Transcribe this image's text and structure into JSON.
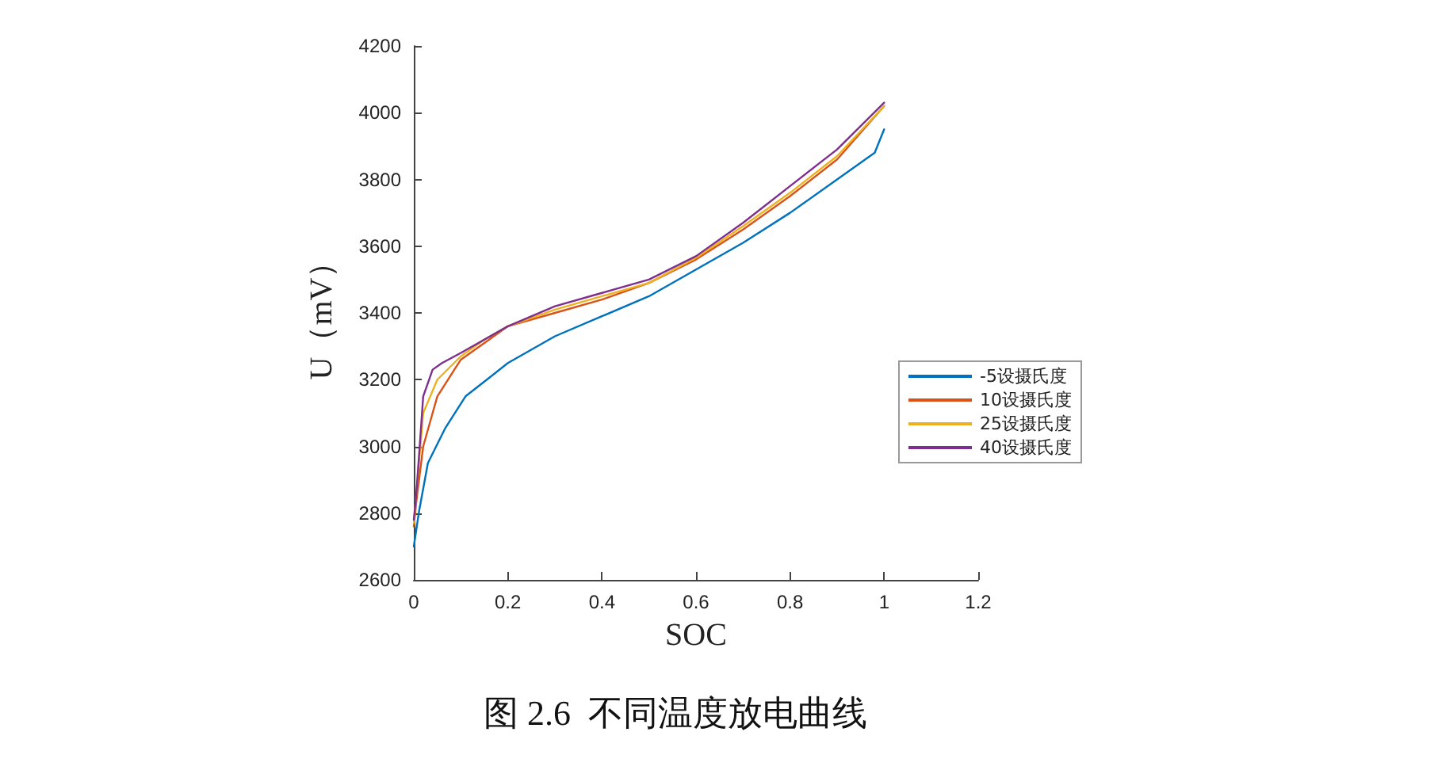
{
  "chart_data": {
    "type": "line",
    "title": "图 2.6  不同温度放电曲线",
    "xlabel": "SOC",
    "ylabel": "U（mV）",
    "xlim": [
      0,
      1.2
    ],
    "xticks": [
      0,
      0.2,
      0.4,
      0.6,
      0.8,
      1,
      1.2
    ],
    "ylim": [
      2600,
      4200
    ],
    "yticks": [
      2600,
      2800,
      3000,
      3200,
      3400,
      3600,
      3800,
      4000,
      4200
    ],
    "grid": false,
    "legend": "right",
    "marker": "none",
    "line_style": "solid",
    "series": [
      {
        "name": "-5设摄氏度",
        "color": "#0072bd",
        "x": [
          0,
          0.011,
          0.03,
          0.067,
          0.11,
          0.166,
          0.2,
          0.3,
          0.4,
          0.5,
          0.6,
          0.7,
          0.8,
          0.9,
          0.98,
          1
        ],
        "values": [
          2700,
          2804,
          2950,
          3055,
          3150,
          3212,
          3250,
          3330,
          3390,
          3450,
          3530,
          3610,
          3700,
          3800,
          3880,
          3950
        ]
      },
      {
        "name": "10设摄氏度",
        "color": "#d95319",
        "x": [
          0,
          0.005,
          0.02,
          0.05,
          0.1,
          0.15,
          0.2,
          0.3,
          0.4,
          0.5,
          0.6,
          0.7,
          0.8,
          0.9,
          1
        ],
        "values": [
          2760,
          2830,
          3000,
          3150,
          3260,
          3310,
          3360,
          3400,
          3440,
          3490,
          3560,
          3650,
          3750,
          3860,
          4020
        ]
      },
      {
        "name": "25设摄氏度",
        "color": "#edb120",
        "x": [
          0,
          0.005,
          0.02,
          0.05,
          0.1,
          0.15,
          0.2,
          0.3,
          0.4,
          0.5,
          0.6,
          0.7,
          0.8,
          0.9,
          1
        ],
        "values": [
          2770,
          2850,
          3100,
          3200,
          3270,
          3320,
          3360,
          3410,
          3450,
          3490,
          3565,
          3660,
          3760,
          3870,
          4020
        ]
      },
      {
        "name": "40设摄氏度",
        "color": "#7e2f8e",
        "x": [
          0,
          0.005,
          0.02,
          0.04,
          0.06,
          0.1,
          0.2,
          0.3,
          0.4,
          0.5,
          0.6,
          0.7,
          0.8,
          0.9,
          1
        ],
        "values": [
          2780,
          2850,
          3150,
          3230,
          3250,
          3280,
          3360,
          3420,
          3460,
          3500,
          3570,
          3670,
          3780,
          3890,
          4030
        ]
      }
    ]
  }
}
